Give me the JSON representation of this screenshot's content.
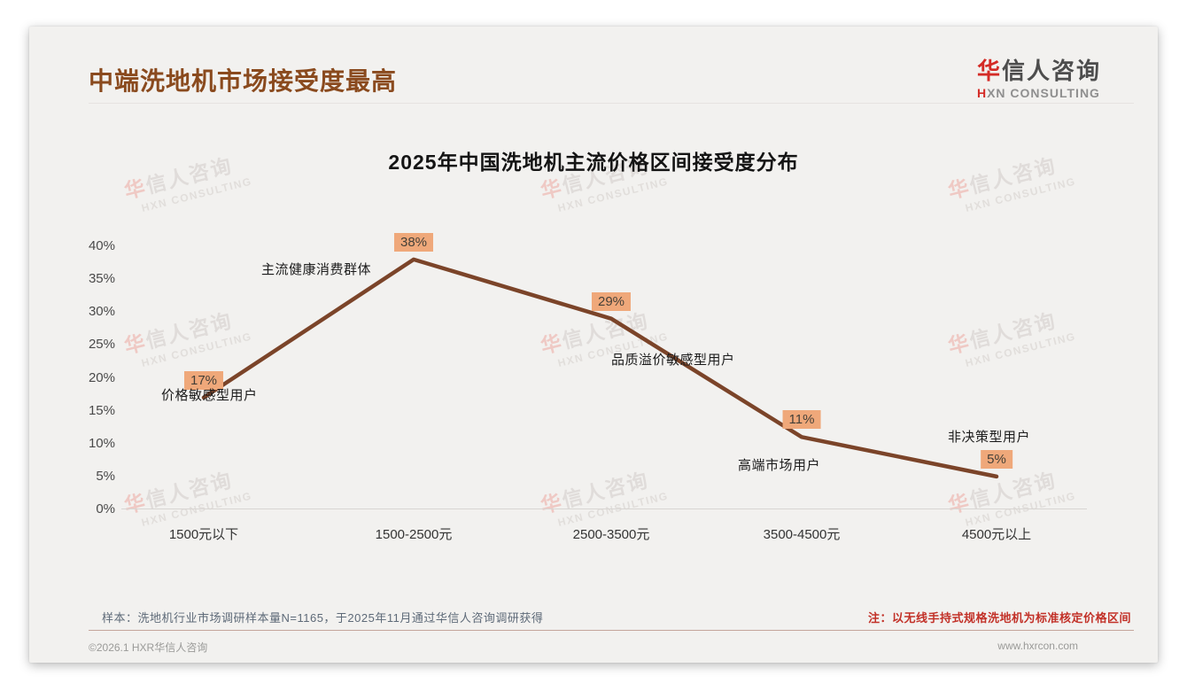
{
  "header": {
    "title": "中端洗地机市场接受度最高"
  },
  "logo": {
    "cn_first": "华",
    "cn_rest": "信人咨询",
    "en_first": "H",
    "en_rest": "XN CONSULTING"
  },
  "watermark": {
    "cn_first": "华",
    "cn_rest": "信人咨询",
    "en": "HXN CONSULTING"
  },
  "chart_data": {
    "type": "line",
    "title": "2025年中国洗地机主流价格区间接受度分布",
    "categories": [
      "1500元以下",
      "1500-2500元",
      "2500-3500元",
      "3500-4500元",
      "4500元以上"
    ],
    "values": [
      17,
      38,
      29,
      11,
      5
    ],
    "value_labels": [
      "17%",
      "38%",
      "29%",
      "11%",
      "5%"
    ],
    "annotations": [
      "价格敏感型用户",
      "主流健康消费群体",
      "品质溢价敏感型用户",
      "高端市场用户",
      "非决策型用户"
    ],
    "y_ticks": [
      "40%",
      "35%",
      "30%",
      "25%",
      "20%",
      "15%",
      "10%",
      "5%",
      "0%"
    ],
    "ylim": [
      0,
      40
    ],
    "xlabel": "",
    "ylabel": "",
    "grid": false,
    "legend": "none",
    "line_color": "#7b4429",
    "label_bg": "#efa87a"
  },
  "footnotes": {
    "sample": "样本：洗地机行业市场调研样本量N=1165，于2025年11月通过华信人咨询调研获得",
    "note": "注：以无线手持式规格洗地机为标准核定价格区间"
  },
  "footer": {
    "copyright": "©2026.1 HXR华信人咨询",
    "website": "www.hxrcon.com"
  }
}
